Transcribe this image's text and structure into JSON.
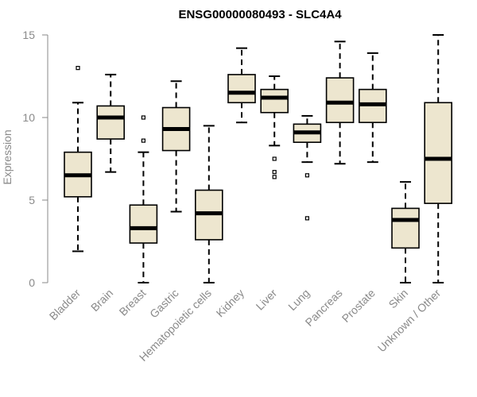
{
  "chart_data": {
    "type": "boxplot",
    "title": "ENSG00000080493 - SLC4A4",
    "xlabel": "",
    "ylabel": "Expression",
    "ylim": [
      0,
      15
    ],
    "yticks": [
      0,
      5,
      10,
      15
    ],
    "grid": false,
    "box_fill": "#ede6cf",
    "box_stroke": "#000000",
    "median_color": "#000000",
    "categories": [
      "Bladder",
      "Brain",
      "Breast",
      "Gastric",
      "Hematopoietic cells",
      "Kidney",
      "Liver",
      "Lung",
      "Pancreas",
      "Prostate",
      "Skin",
      "Unknown / Other"
    ],
    "series": [
      {
        "name": "Bladder",
        "whisker_low": 1.9,
        "q1": 5.2,
        "median": 6.5,
        "q3": 7.9,
        "whisker_high": 10.9,
        "outliers": [
          13.0
        ]
      },
      {
        "name": "Brain",
        "whisker_low": 6.7,
        "q1": 8.7,
        "median": 10.0,
        "q3": 10.7,
        "whisker_high": 12.6,
        "outliers": []
      },
      {
        "name": "Breast",
        "whisker_low": 0.0,
        "q1": 2.4,
        "median": 3.3,
        "q3": 4.7,
        "whisker_high": 7.9,
        "outliers": [
          8.6,
          10.0
        ]
      },
      {
        "name": "Gastric",
        "whisker_low": 4.3,
        "q1": 8.0,
        "median": 9.3,
        "q3": 10.6,
        "whisker_high": 12.2,
        "outliers": []
      },
      {
        "name": "Hematopoietic cells",
        "whisker_low": 0.0,
        "q1": 2.6,
        "median": 4.2,
        "q3": 5.6,
        "whisker_high": 9.5,
        "outliers": []
      },
      {
        "name": "Kidney",
        "whisker_low": 9.7,
        "q1": 10.9,
        "median": 11.5,
        "q3": 12.6,
        "whisker_high": 14.2,
        "outliers": []
      },
      {
        "name": "Liver",
        "whisker_low": 8.3,
        "q1": 10.3,
        "median": 11.2,
        "q3": 11.7,
        "whisker_high": 12.5,
        "outliers": [
          7.5,
          6.7,
          6.4
        ]
      },
      {
        "name": "Lung",
        "whisker_low": 7.3,
        "q1": 8.5,
        "median": 9.1,
        "q3": 9.6,
        "whisker_high": 10.1,
        "outliers": [
          6.5,
          3.9
        ]
      },
      {
        "name": "Pancreas",
        "whisker_low": 7.2,
        "q1": 9.7,
        "median": 10.9,
        "q3": 12.4,
        "whisker_high": 14.6,
        "outliers": []
      },
      {
        "name": "Prostate",
        "whisker_low": 7.3,
        "q1": 9.7,
        "median": 10.8,
        "q3": 11.7,
        "whisker_high": 13.9,
        "outliers": []
      },
      {
        "name": "Skin",
        "whisker_low": 0.0,
        "q1": 2.1,
        "median": 3.8,
        "q3": 4.5,
        "whisker_high": 6.1,
        "outliers": []
      },
      {
        "name": "Unknown / Other",
        "whisker_low": 0.0,
        "q1": 4.8,
        "median": 7.5,
        "q3": 10.9,
        "whisker_high": 15.0,
        "outliers": []
      }
    ]
  }
}
